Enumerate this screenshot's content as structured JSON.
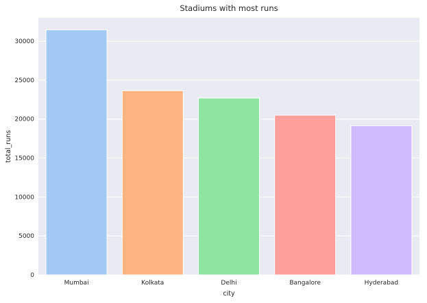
{
  "chart_data": {
    "type": "bar",
    "title": "Stadiums with most runs",
    "xlabel": "city",
    "ylabel": "total_runs",
    "categories": [
      "Mumbai",
      "Kolkata",
      "Delhi",
      "Bangalore",
      "Hyderabad"
    ],
    "values": [
      31450,
      23650,
      22700,
      20500,
      19150
    ],
    "ylim": [
      0,
      33000
    ],
    "yticks": [
      "0",
      "5000",
      "10000",
      "15000",
      "20000",
      "25000",
      "30000"
    ],
    "ytick_values": [
      0,
      5000,
      10000,
      15000,
      20000,
      25000,
      30000
    ],
    "grid": true,
    "colors": {
      "plot_background": "#eaeaf2",
      "grid": "#ffffff",
      "bars": [
        "#a1c9f4",
        "#ffb482",
        "#8de5a1",
        "#ff9f9b",
        "#d0bbff"
      ]
    }
  }
}
